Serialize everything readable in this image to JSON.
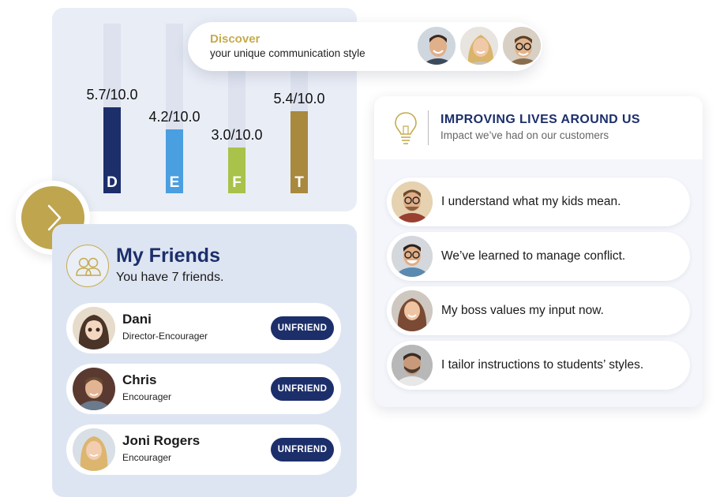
{
  "chart_data": {
    "type": "bar",
    "categories": [
      "D",
      "E",
      "F",
      "T"
    ],
    "values": [
      5.7,
      4.2,
      3.0,
      5.4
    ],
    "value_labels": [
      "5.7/10.0",
      "4.2/10.0",
      "3.0/10.0",
      "5.4/10.0"
    ],
    "ylim": [
      0,
      10
    ],
    "colors": [
      "#1c2f6b",
      "#4a9fe0",
      "#a8c24a",
      "#a8893e"
    ],
    "title": "",
    "xlabel": "",
    "ylabel": ""
  },
  "discover": {
    "title": "Discover",
    "subtitle": "your unique communication style",
    "avatars": [
      "man-smiling-avatar",
      "woman-smiling-avatar",
      "man-glasses-avatar"
    ]
  },
  "next_button": {
    "icon": "chevron-right-icon"
  },
  "friends": {
    "icon": "people-icon",
    "title": "My Friends",
    "count_text": "You have 7 friends.",
    "button_label": "UNFRIEND",
    "list": [
      {
        "name": "Dani",
        "role": "Director-Encourager",
        "avatar": "anime-girl-avatar"
      },
      {
        "name": "Chris",
        "role": "Encourager",
        "avatar": "boy-portrait-avatar"
      },
      {
        "name": "Joni Rogers",
        "role": "Encourager",
        "avatar": "blonde-woman-avatar"
      }
    ]
  },
  "impact": {
    "icon": "lightbulb-icon",
    "title": "IMPROVING LIVES AROUND US",
    "subtitle": "Impact we’ve had on our customers",
    "quotes": [
      {
        "text": "I understand what my kids mean.",
        "avatar": "man-glasses-beard-avatar"
      },
      {
        "text": "We’ve learned to manage conflict.",
        "avatar": "man-glasses-laughing-avatar"
      },
      {
        "text": "My boss values my input now.",
        "avatar": "woman-smiling-avatar"
      },
      {
        "text": "I tailor instructions to students’ styles.",
        "avatar": "man-beard-avatar"
      }
    ]
  },
  "colors": {
    "navy": "#1c2f6b",
    "gold": "#bfa54e",
    "panel_bg": "#e9edf6"
  }
}
